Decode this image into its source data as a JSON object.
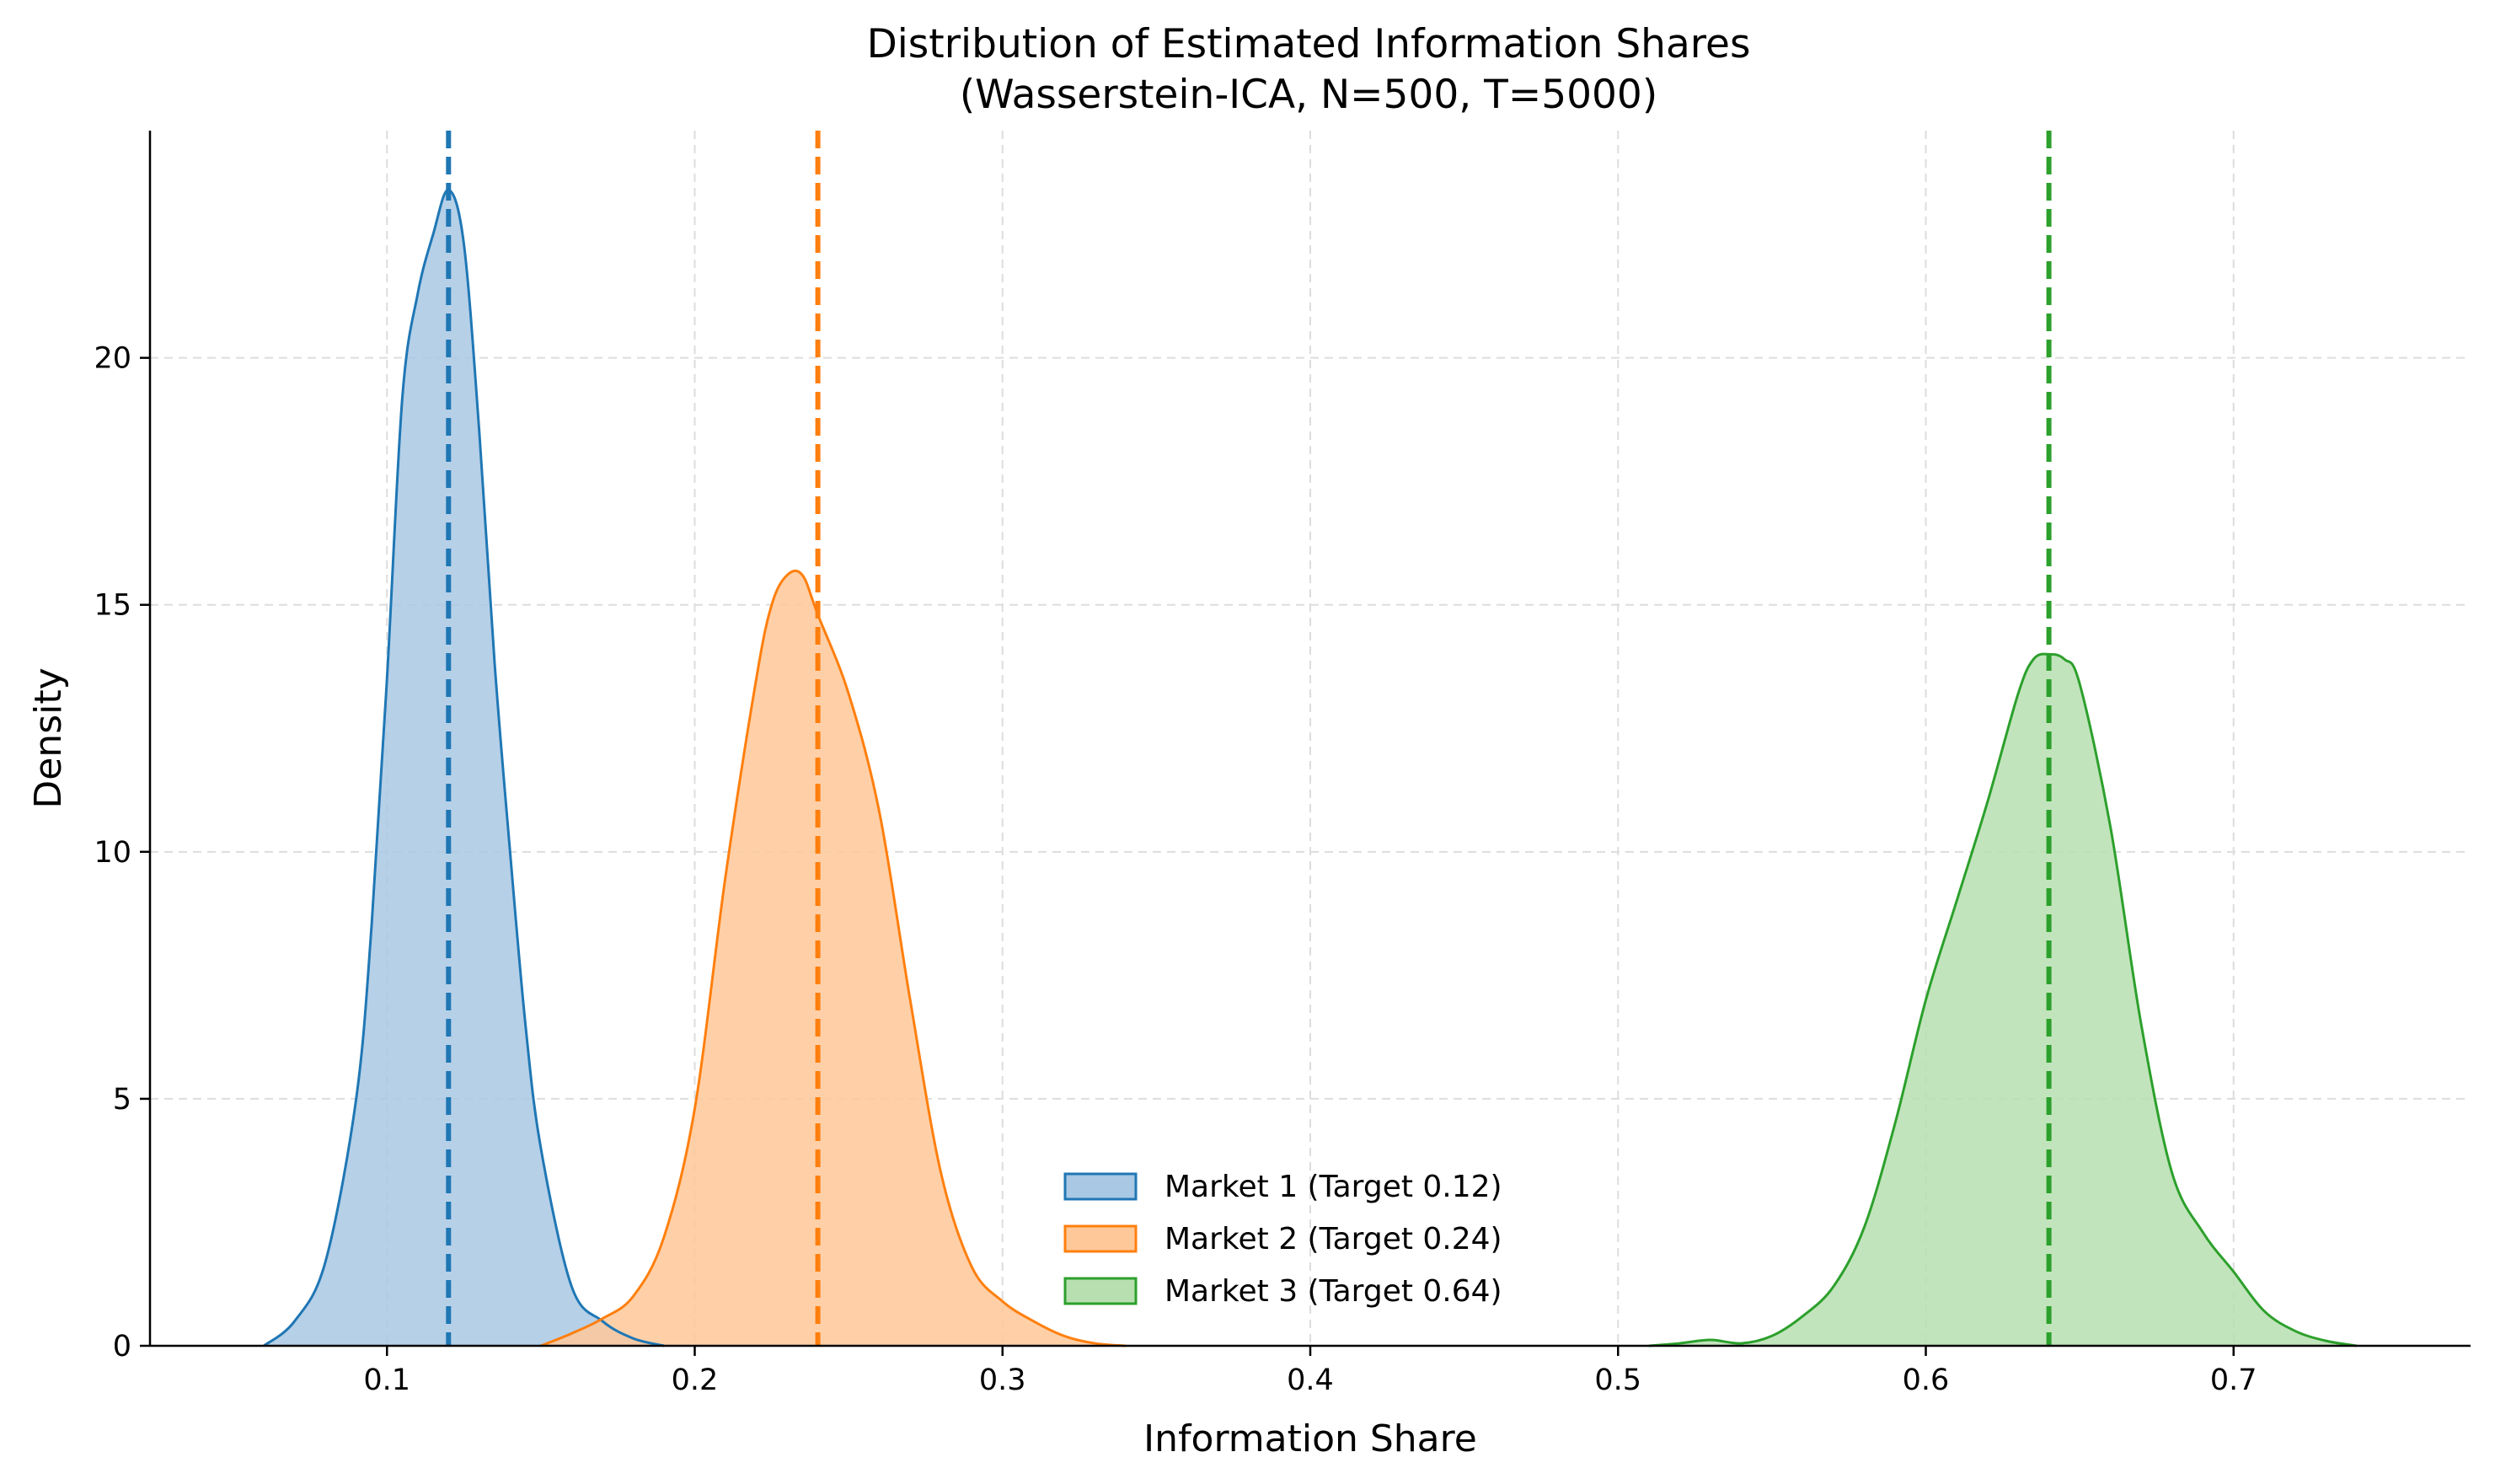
{
  "chart_data": {
    "type": "area",
    "title": "Distribution of Estimated Information Shares",
    "subtitle": "(Wasserstein-ICA, N=500, T=5000)",
    "xlabel": "Information Share",
    "ylabel": "Density",
    "xlim": [
      0.023,
      0.777
    ],
    "ylim": [
      0,
      24.6
    ],
    "xticks": [
      0.1,
      0.2,
      0.3,
      0.4,
      0.5,
      0.6,
      0.7
    ],
    "xtick_labels": [
      "0.1",
      "0.2",
      "0.3",
      "0.4",
      "0.5",
      "0.6",
      "0.7"
    ],
    "yticks": [
      0,
      5,
      10,
      15,
      20
    ],
    "ytick_labels": [
      "0",
      "5",
      "10",
      "15",
      "20"
    ],
    "grid": true,
    "legend_position": "bottom-center",
    "series": [
      {
        "name": "Market 1 (Target 0.12)",
        "color": "#1f77b4",
        "fill": "#a9c8e4",
        "target": 0.12,
        "x": [
          0.06,
          0.07,
          0.08,
          0.09,
          0.095,
          0.1,
          0.105,
          0.11,
          0.115,
          0.12,
          0.125,
          0.13,
          0.135,
          0.14,
          0.145,
          0.15,
          0.16,
          0.17,
          0.18,
          0.19
        ],
        "y": [
          0,
          0.5,
          1.7,
          5.0,
          8.5,
          13.5,
          19.2,
          21.3,
          22.5,
          23.4,
          22.3,
          18.5,
          13.8,
          10.0,
          6.5,
          4.0,
          1.2,
          0.5,
          0.15,
          0
        ]
      },
      {
        "name": "Market 2 (Target 0.24)",
        "color": "#ff7f0e",
        "fill": "#ffc899",
        "target": 0.24,
        "x": [
          0.15,
          0.16,
          0.17,
          0.18,
          0.19,
          0.2,
          0.21,
          0.22,
          0.225,
          0.23,
          0.235,
          0.24,
          0.25,
          0.26,
          0.27,
          0.28,
          0.29,
          0.3,
          0.31,
          0.32,
          0.33,
          0.34
        ],
        "y": [
          0,
          0.25,
          0.55,
          1.0,
          2.2,
          4.8,
          9.5,
          13.5,
          15.0,
          15.6,
          15.6,
          14.8,
          13.2,
          10.8,
          7.0,
          3.5,
          1.6,
          0.9,
          0.5,
          0.2,
          0.05,
          0
        ]
      },
      {
        "name": "Market 3 (Target 0.64)",
        "color": "#2ca02c",
        "fill": "#b7dfb0",
        "target": 0.64,
        "x": [
          0.51,
          0.52,
          0.53,
          0.54,
          0.55,
          0.56,
          0.57,
          0.58,
          0.59,
          0.6,
          0.61,
          0.62,
          0.63,
          0.635,
          0.64,
          0.645,
          0.65,
          0.66,
          0.67,
          0.68,
          0.69,
          0.7,
          0.71,
          0.72,
          0.73,
          0.74
        ],
        "y": [
          0,
          0.05,
          0.12,
          0.05,
          0.2,
          0.6,
          1.2,
          2.4,
          4.5,
          7.0,
          9.0,
          11.0,
          13.2,
          13.9,
          14.0,
          13.9,
          13.4,
          10.5,
          6.5,
          3.5,
          2.3,
          1.5,
          0.7,
          0.3,
          0.1,
          0
        ]
      }
    ]
  }
}
